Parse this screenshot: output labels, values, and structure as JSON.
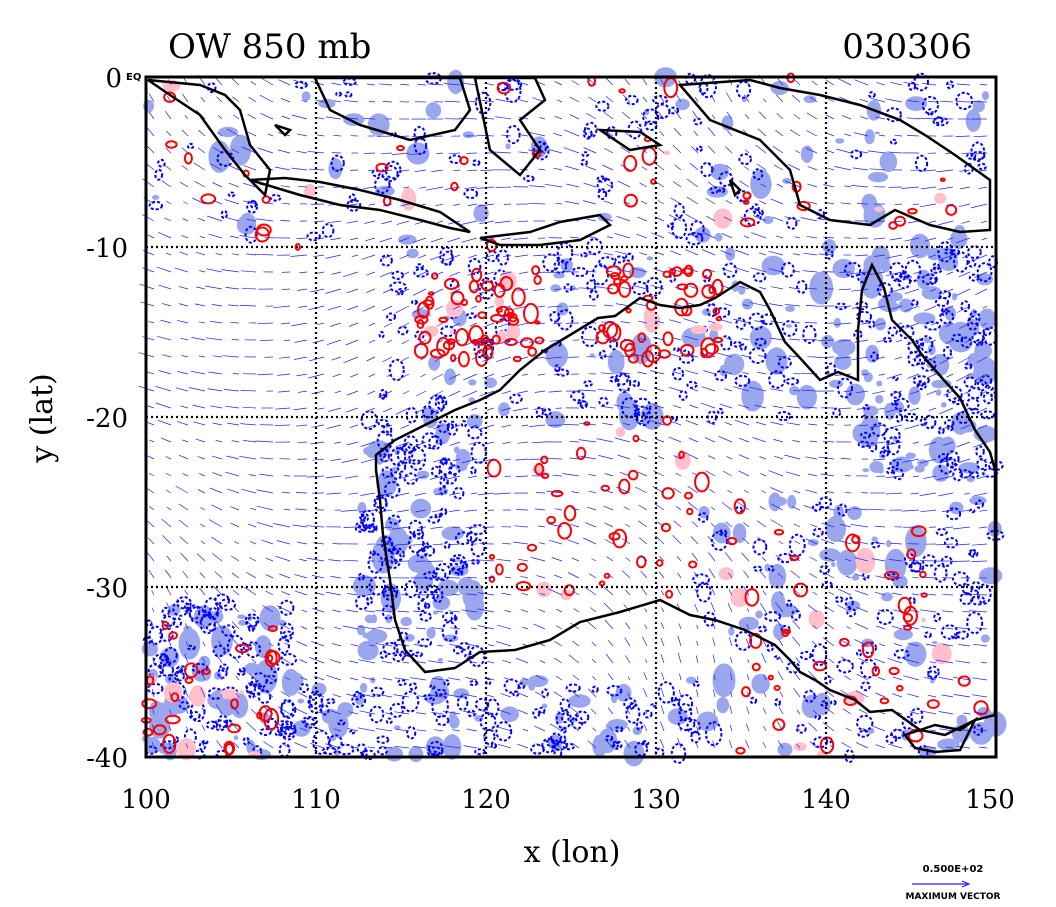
{
  "title": {
    "left": "OW 850 mb",
    "right": "030306"
  },
  "x_axis": {
    "label": "x (lon)",
    "ticks": [
      "100",
      "110",
      "120",
      "130",
      "140",
      "150"
    ]
  },
  "y_axis": {
    "label": "y (lat)",
    "ticks": [
      "0",
      "-10",
      "-20",
      "-30",
      "-40"
    ],
    "eq_label": "EQ"
  },
  "vector_key": {
    "value": "0.500E+02",
    "label": "MAXIMUM VECTOR"
  },
  "map": {
    "lon_range": [
      100,
      150
    ],
    "lat_range": [
      -40,
      0
    ],
    "gridlines": true,
    "colors": {
      "positive": "#ff0000",
      "negative": "#0000ff",
      "negative_fill": "#9aa6ee",
      "positive_fill": "#ffc0cb",
      "coast": "#000000",
      "vectors": "#2020ff"
    }
  }
}
